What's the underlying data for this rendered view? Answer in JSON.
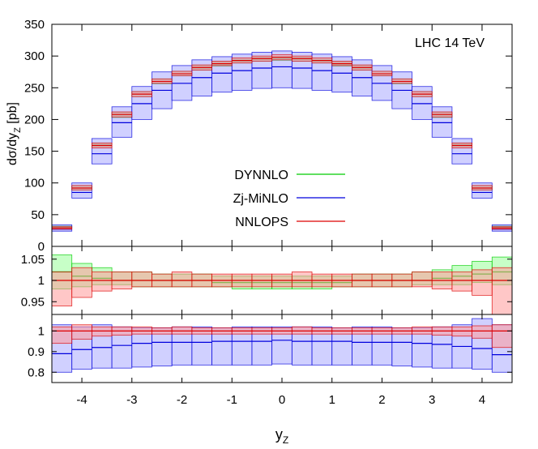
{
  "chart_data": {
    "type": "bar",
    "annotation": "LHC 14 TeV",
    "xlabel": "y",
    "xlabel_sub": "Z",
    "xlim": [
      -4.6,
      4.6
    ],
    "x_ticks": [
      -4,
      -3,
      -2,
      -1,
      0,
      1,
      2,
      3,
      4
    ],
    "x_tick_labels": [
      "-4",
      "-3",
      "-2",
      "-1",
      "0",
      "1",
      "2",
      "3",
      "4"
    ],
    "bin_edges": [
      -4.6,
      -4.2,
      -3.8,
      -3.4,
      -3.0,
      -2.6,
      -2.2,
      -1.8,
      -1.4,
      -1.0,
      -0.6,
      -0.2,
      0.2,
      0.6,
      1.0,
      1.4,
      1.8,
      2.2,
      2.6,
      3.0,
      3.4,
      3.8,
      4.2,
      4.6
    ],
    "legend": {
      "placement": "center-left",
      "entries": [
        {
          "label": "DYNNLO",
          "color": "#00cc00"
        },
        {
          "label": "Zj-MiNLO",
          "color": "#0000dd"
        },
        {
          "label": "NNLOPS",
          "color": "#dd0000"
        }
      ]
    },
    "band_fill_colors": {
      "DYNNLO": "#99ff99",
      "Zj-MiNLO": "#aaaaff",
      "NNLOPS": "#ff9999"
    },
    "panels": [
      {
        "name": "distribution",
        "ylabel": "dσ/dy",
        "ylabel_sub": "Z",
        "ylabel_unit": " [pb]",
        "ylim": [
          0,
          350
        ],
        "y_ticks": [
          0,
          50,
          100,
          150,
          200,
          250,
          300,
          350
        ],
        "y_tick_labels": [
          "0",
          "50",
          "100",
          "150",
          "200",
          "250",
          "300",
          "350"
        ],
        "series": [
          {
            "name": "DYNNLO",
            "center": [
              30,
              92,
              160,
              207,
              240,
              260,
              272,
              281,
              287,
              292,
              295,
              296,
              295,
              292,
              287,
              281,
              272,
              260,
              240,
              207,
              160,
              92,
              30
            ],
            "low": [
              29,
              89,
              157,
              203,
              236,
              256,
              269,
              278,
              284,
              289,
              292,
              293,
              292,
              289,
              284,
              278,
              269,
              256,
              236,
              203,
              157,
              89,
              29
            ],
            "high": [
              32,
              95,
              163,
              211,
              244,
              264,
              276,
              285,
              291,
              295,
              298,
              299,
              298,
              295,
              291,
              285,
              276,
              264,
              244,
              211,
              163,
              95,
              32
            ]
          },
          {
            "name": "Zj-MiNLO",
            "center": [
              27,
              85,
              146,
              195,
              225,
              246,
              257,
              266,
              273,
              277,
              281,
              283,
              281,
              277,
              273,
              266,
              257,
              246,
              225,
              195,
              146,
              85,
              27
            ],
            "low": [
              24,
              76,
              130,
              172,
              200,
              217,
              230,
              237,
              243,
              246,
              249,
              250,
              249,
              246,
              243,
              237,
              230,
              217,
              200,
              172,
              130,
              76,
              24
            ],
            "high": [
              34,
              100,
              170,
              220,
              252,
              275,
              285,
              294,
              299,
              303,
              306,
              308,
              306,
              303,
              299,
              294,
              285,
              275,
              252,
              220,
              170,
              100,
              34
            ]
          },
          {
            "name": "NNLOPS",
            "center": [
              29,
              92,
              159,
              208,
              240,
              260,
              272,
              282,
              288,
              293,
              296,
              298,
              296,
              293,
              288,
              282,
              272,
              260,
              240,
              208,
              159,
              92,
              29
            ],
            "low": [
              27,
              89,
              155,
              204,
              236,
              257,
              269,
              278,
              285,
              289,
              292,
              294,
              292,
              289,
              285,
              278,
              269,
              257,
              236,
              204,
              155,
              89,
              27
            ],
            "high": [
              31,
              96,
              163,
              212,
              244,
              264,
              276,
              286,
              292,
              297,
              300,
              302,
              300,
              297,
              292,
              286,
              276,
              264,
              244,
              212,
              163,
              96,
              31
            ]
          }
        ]
      },
      {
        "name": "ratio-dynnlo-nnlops",
        "ylim": [
          0.92,
          1.08
        ],
        "y_ticks": [
          0.95,
          1,
          1.05
        ],
        "y_tick_labels": [
          "0.95",
          "1",
          "1.05"
        ],
        "series": [
          {
            "name": "DYNNLO",
            "center": [
              1.02,
              1.01,
              1.005,
              1.0,
              1.0,
              1.0,
              1.0,
              1.0,
              0.995,
              0.995,
              0.995,
              0.995,
              0.995,
              0.995,
              0.995,
              1.0,
              1.0,
              1.0,
              1.0,
              1.005,
              1.01,
              1.015,
              1.02
            ],
            "low": [
              0.98,
              0.985,
              0.99,
              0.99,
              0.985,
              0.985,
              0.985,
              0.985,
              0.985,
              0.98,
              0.98,
              0.98,
              0.98,
              0.98,
              0.985,
              0.985,
              0.985,
              0.985,
              0.99,
              0.99,
              0.99,
              0.995,
              0.99
            ],
            "high": [
              1.06,
              1.04,
              1.03,
              1.02,
              1.02,
              1.015,
              1.015,
              1.015,
              1.01,
              1.01,
              1.01,
              1.01,
              1.01,
              1.01,
              1.01,
              1.015,
              1.015,
              1.015,
              1.02,
              1.025,
              1.035,
              1.045,
              1.055
            ]
          },
          {
            "name": "NNLOPS",
            "center": [
              1.0,
              1.0,
              1.0,
              1.0,
              1.0,
              1.0,
              1.0,
              1.0,
              1.0,
              1.0,
              1.0,
              1.0,
              1.0,
              1.0,
              1.0,
              1.0,
              1.0,
              1.0,
              1.0,
              1.0,
              1.0,
              1.0,
              1.0
            ],
            "low": [
              0.94,
              0.96,
              0.975,
              0.98,
              0.985,
              0.985,
              0.985,
              0.985,
              0.985,
              0.985,
              0.985,
              0.985,
              0.985,
              0.985,
              0.985,
              0.985,
              0.985,
              0.985,
              0.985,
              0.98,
              0.975,
              0.965,
              0.92
            ],
            "high": [
              1.02,
              1.03,
              1.02,
              1.02,
              1.02,
              1.015,
              1.02,
              1.015,
              1.015,
              1.015,
              1.015,
              1.015,
              1.02,
              1.015,
              1.015,
              1.015,
              1.015,
              1.015,
              1.02,
              1.02,
              1.02,
              1.025,
              1.03
            ]
          }
        ]
      },
      {
        "name": "ratio-minlo-nnlops",
        "ylim": [
          0.75,
          1.08
        ],
        "y_ticks": [
          0.8,
          0.9,
          1
        ],
        "y_tick_labels": [
          "0.8",
          "0.9",
          "1"
        ],
        "series": [
          {
            "name": "Zj-MiNLO",
            "center": [
              0.89,
              0.91,
              0.92,
              0.93,
              0.94,
              0.945,
              0.945,
              0.945,
              0.95,
              0.95,
              0.95,
              0.955,
              0.95,
              0.95,
              0.95,
              0.945,
              0.945,
              0.945,
              0.94,
              0.935,
              0.925,
              0.915,
              0.885
            ],
            "low": [
              0.8,
              0.815,
              0.82,
              0.82,
              0.825,
              0.83,
              0.835,
              0.835,
              0.835,
              0.835,
              0.835,
              0.84,
              0.835,
              0.835,
              0.835,
              0.835,
              0.835,
              0.83,
              0.825,
              0.82,
              0.82,
              0.815,
              0.8
            ],
            "high": [
              1.03,
              1.02,
              1.03,
              1.02,
              1.015,
              1.015,
              1.02,
              1.02,
              1.015,
              1.02,
              1.02,
              1.02,
              1.02,
              1.02,
              1.015,
              1.02,
              1.02,
              1.015,
              1.015,
              1.02,
              1.03,
              1.06,
              1.03
            ]
          },
          {
            "name": "NNLOPS",
            "center": [
              1.0,
              1.0,
              1.0,
              1.0,
              1.0,
              1.0,
              1.0,
              1.0,
              1.0,
              1.0,
              1.0,
              1.0,
              1.0,
              1.0,
              1.0,
              1.0,
              1.0,
              1.0,
              1.0,
              1.0,
              1.0,
              1.0,
              1.0
            ],
            "low": [
              0.94,
              0.96,
              0.975,
              0.98,
              0.985,
              0.985,
              0.985,
              0.985,
              0.985,
              0.985,
              0.985,
              0.985,
              0.985,
              0.985,
              0.985,
              0.985,
              0.985,
              0.985,
              0.985,
              0.98,
              0.975,
              0.965,
              0.92
            ],
            "high": [
              1.02,
              1.03,
              1.02,
              1.02,
              1.02,
              1.015,
              1.02,
              1.015,
              1.015,
              1.015,
              1.015,
              1.015,
              1.02,
              1.015,
              1.015,
              1.015,
              1.015,
              1.015,
              1.02,
              1.02,
              1.02,
              1.025,
              1.03
            ]
          }
        ]
      }
    ]
  }
}
